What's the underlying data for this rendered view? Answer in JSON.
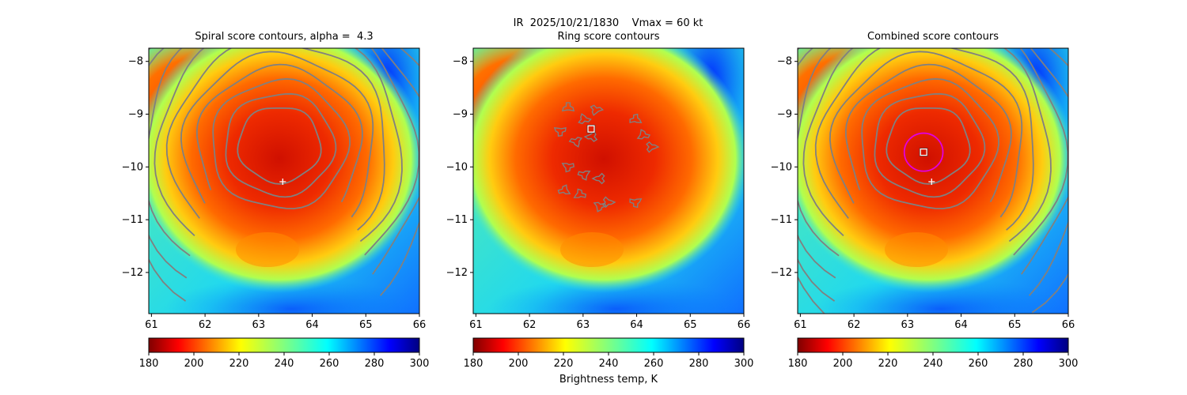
{
  "figure": {
    "suptitle": "IR  2025/10/21/1830    Vmax = 60 kt",
    "colorbar_label": "Brightness temp, K",
    "colormap": "jet",
    "contour_color": "#808080"
  },
  "chart_data": [
    {
      "type": "heatmap",
      "title": "Spiral score contours, alpha =  4.3",
      "xlim": [
        60.95,
        66.0
      ],
      "ylim": [
        -12.78,
        -7.75
      ],
      "x_ticks": [
        "61",
        "62",
        "63",
        "64",
        "65",
        "66"
      ],
      "y_ticks": [
        "−8",
        "−9",
        "−10",
        "−11",
        "−12"
      ],
      "colorbar": {
        "range": [
          180,
          300
        ],
        "ticks": [
          "180",
          "200",
          "220",
          "240",
          "260",
          "280",
          "300"
        ]
      },
      "contour_type": "spiral",
      "contour_count": 10,
      "center_marker": {
        "symbol": "plus",
        "color": "#ffffff",
        "lon": 63.45,
        "lat": -10.28
      }
    },
    {
      "type": "heatmap",
      "title": "Ring score contours",
      "xlim": [
        60.95,
        66.0
      ],
      "ylim": [
        -12.78,
        -7.75
      ],
      "x_ticks": [
        "61",
        "62",
        "63",
        "64",
        "65",
        "66"
      ],
      "y_ticks": [
        "−8",
        "−9",
        "−10",
        "−11",
        "−12"
      ],
      "colorbar": {
        "range": [
          180,
          300
        ],
        "ticks": [
          "180",
          "200",
          "220",
          "240",
          "260",
          "280",
          "300"
        ]
      },
      "contour_type": "ring",
      "center_marker": {
        "symbol": "square",
        "color": "#ffffff",
        "lon": 63.15,
        "lat": -9.28
      }
    },
    {
      "type": "heatmap",
      "title": "Combined score contours",
      "xlim": [
        60.95,
        66.0
      ],
      "ylim": [
        -12.78,
        -7.75
      ],
      "x_ticks": [
        "61",
        "62",
        "63",
        "64",
        "65",
        "66"
      ],
      "y_ticks": [
        "−8",
        "−9",
        "−10",
        "−11",
        "−12"
      ],
      "colorbar": {
        "range": [
          180,
          300
        ],
        "ticks": [
          "180",
          "200",
          "220",
          "240",
          "260",
          "280",
          "300"
        ]
      },
      "contour_type": "spiral",
      "contour_count": 11,
      "center_marker": {
        "symbol": "square",
        "color": "#ffffff",
        "lon": 63.3,
        "lat": -9.72
      },
      "center_ring": {
        "color": "#e000e0",
        "lon": 63.3,
        "lat": -9.72,
        "radius_deg": 0.36
      },
      "first_guess_marker": {
        "symbol": "plus",
        "color": "#ffffff",
        "lon": 63.45,
        "lat": -10.28
      }
    }
  ]
}
